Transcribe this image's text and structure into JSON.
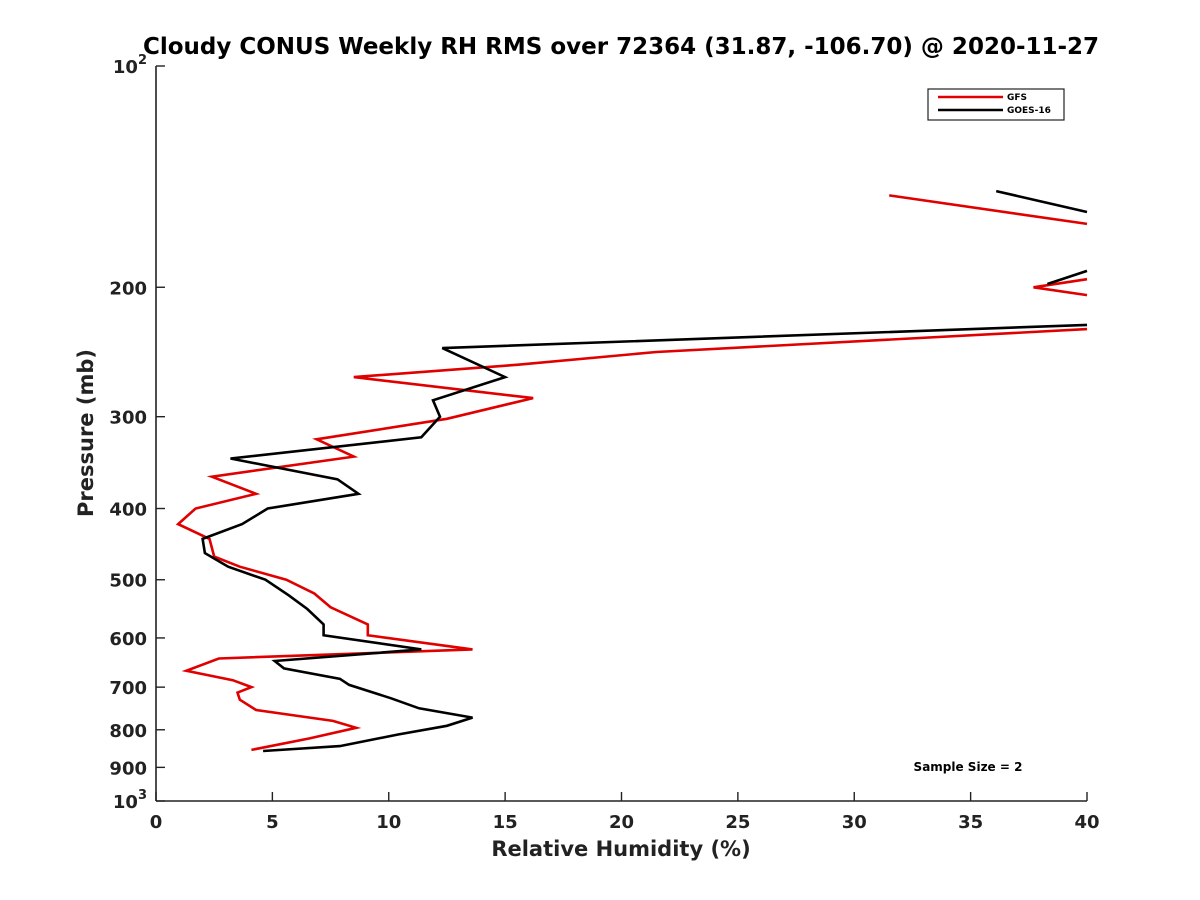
{
  "chart_data": {
    "type": "line",
    "title": "Cloudy CONUS Weekly RH RMS over 72364 (31.87, -106.70) @ 2020-11-27",
    "xlabel": "Relative Humidity (%)",
    "ylabel": "Pressure (mb)",
    "xlim": [
      0,
      40
    ],
    "ylim": [
      1000,
      100
    ],
    "yscale": "log",
    "y_reversed": true,
    "grid": false,
    "legend_position": "top-right",
    "x_ticks": [
      "0",
      "5",
      "10",
      "15",
      "20",
      "25",
      "30",
      "35",
      "40"
    ],
    "y_ticks": [
      {
        "value": 100,
        "base": "10",
        "exp": "2"
      },
      {
        "value": 200,
        "label": "200"
      },
      {
        "value": 300,
        "label": "300"
      },
      {
        "value": 400,
        "label": "400"
      },
      {
        "value": 500,
        "label": "500"
      },
      {
        "value": 600,
        "label": "600"
      },
      {
        "value": 700,
        "label": "700"
      },
      {
        "value": 800,
        "label": "800"
      },
      {
        "value": 900,
        "label": "900"
      },
      {
        "value": 1000,
        "base": "10",
        "exp": "3"
      }
    ],
    "annotation": "Sample Size = 2",
    "series": [
      {
        "name": "GFS",
        "color": "#e00000",
        "segments": [
          [
            [
              31.5,
              150
            ],
            [
              40,
              164
            ]
          ],
          [
            [
              40,
              195
            ],
            [
              37.7,
              200
            ],
            [
              40,
              205
            ]
          ],
          [
            [
              40,
              228
            ],
            [
              21.5,
              245
            ],
            [
              15.5,
              255
            ],
            [
              8.5,
              265
            ],
            [
              16.2,
              283
            ],
            [
              12.5,
              302
            ],
            [
              6.9,
              322
            ],
            [
              8.5,
              340
            ],
            [
              2.4,
              362
            ],
            [
              4.3,
              382
            ],
            [
              1.7,
              400
            ],
            [
              0.95,
              420
            ],
            [
              2.3,
              440
            ],
            [
              2.5,
              465
            ],
            [
              3.6,
              480
            ],
            [
              5.6,
              500
            ],
            [
              6.8,
              522
            ],
            [
              7.5,
              545
            ],
            [
              9.1,
              575
            ],
            [
              9.1,
              595
            ],
            [
              13.6,
              622
            ],
            [
              2.7,
              640
            ],
            [
              1.3,
              665
            ],
            [
              3.3,
              685
            ],
            [
              4.1,
              700
            ],
            [
              3.5,
              712
            ],
            [
              3.6,
              728
            ],
            [
              4.3,
              752
            ],
            [
              7.6,
              778
            ],
            [
              8.6,
              795
            ],
            [
              6.6,
              822
            ],
            [
              4.1,
              852
            ]
          ]
        ]
      },
      {
        "name": "GOES-16",
        "color": "#000000",
        "segments": [
          [
            [
              36.1,
              148
            ],
            [
              40,
              158
            ]
          ],
          [
            [
              38.3,
              198
            ],
            [
              40,
              190
            ]
          ],
          [
            [
              40,
              225
            ],
            [
              12.3,
              242
            ],
            [
              15.0,
              265
            ],
            [
              11.9,
              285
            ],
            [
              12.2,
              300
            ],
            [
              11.4,
              320
            ],
            [
              3.2,
              342
            ],
            [
              7.8,
              365
            ],
            [
              8.7,
              382
            ],
            [
              4.8,
              400
            ],
            [
              3.7,
              420
            ],
            [
              2.0,
              440
            ],
            [
              2.1,
              460
            ],
            [
              3.1,
              480
            ],
            [
              4.7,
              500
            ],
            [
              5.7,
              525
            ],
            [
              6.5,
              548
            ],
            [
              7.2,
              575
            ],
            [
              7.2,
              595
            ],
            [
              11.4,
              622
            ],
            [
              5.1,
              645
            ],
            [
              5.5,
              660
            ],
            [
              7.9,
              682
            ],
            [
              8.3,
              695
            ],
            [
              10.1,
              725
            ],
            [
              11.3,
              748
            ],
            [
              13.6,
              770
            ],
            [
              12.5,
              790
            ],
            [
              10.4,
              812
            ],
            [
              7.9,
              842
            ],
            [
              4.6,
              855
            ]
          ]
        ]
      }
    ]
  }
}
